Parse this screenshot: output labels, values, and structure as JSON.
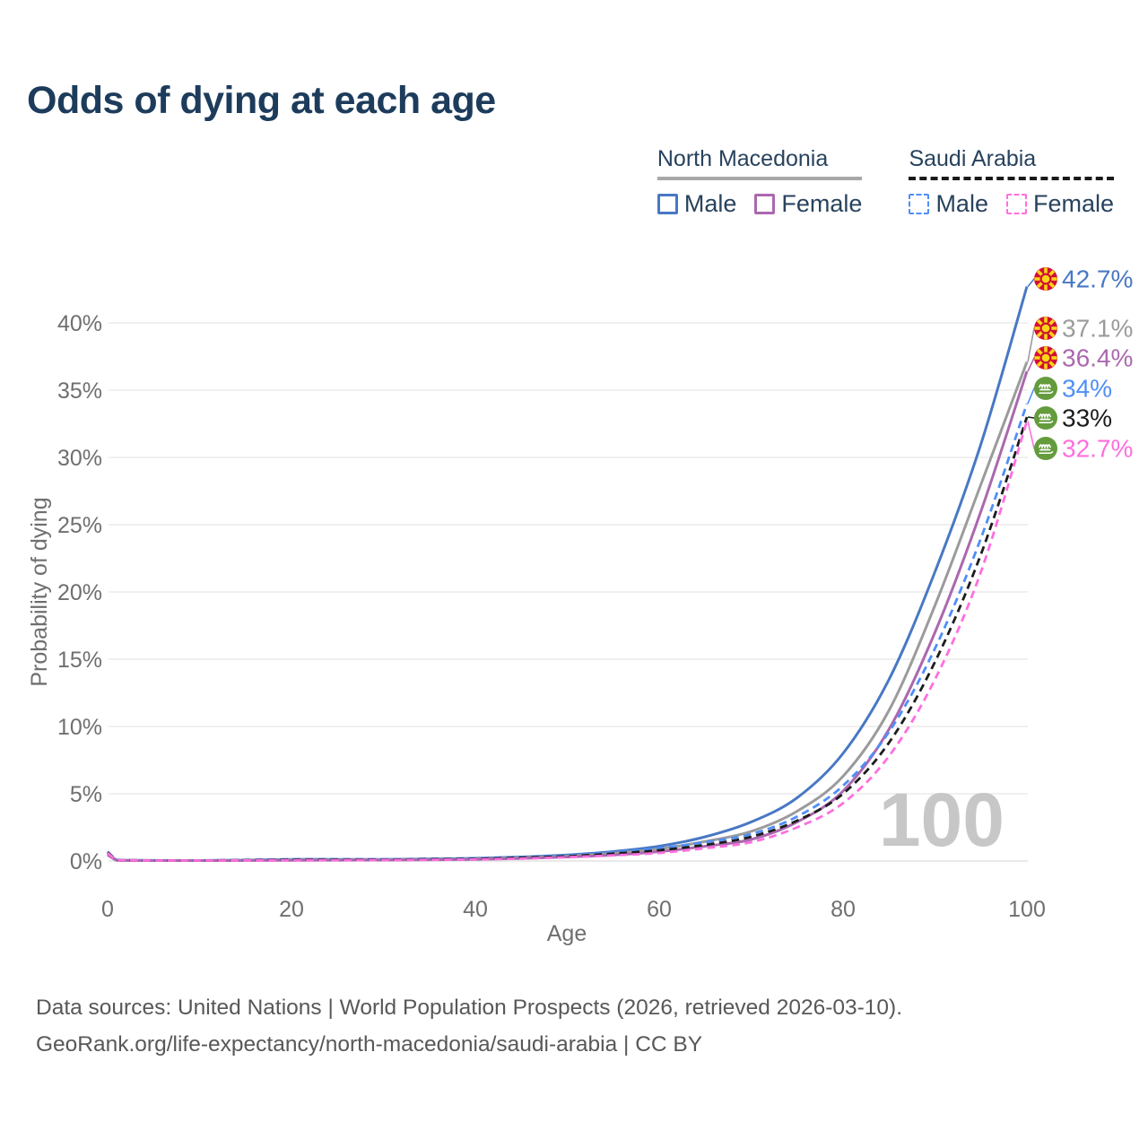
{
  "title": "Odds of dying at each age",
  "watermark": "100",
  "legend": {
    "groups": [
      {
        "label": "North Macedonia",
        "line_style": "solid",
        "underline_color": "#a8a8a8",
        "items": [
          {
            "label": "Male",
            "color": "#4878c4"
          },
          {
            "label": "Female",
            "color": "#ab68ae"
          }
        ]
      },
      {
        "label": "Saudi Arabia",
        "line_style": "dashed",
        "underline_color": "#1a1a1a",
        "items": [
          {
            "label": "Male",
            "color": "#4f8ef7"
          },
          {
            "label": "Female",
            "color": "#ff6ede"
          }
        ]
      }
    ]
  },
  "footer": {
    "line1": "Data sources: United Nations | World Population Prospects (2026, retrieved 2026-03-10).",
    "line2": "GeoRank.org/life-expectancy/north-macedonia/saudi-arabia | CC BY"
  },
  "chart_data": {
    "type": "line",
    "title": "Odds of dying at each age",
    "xlabel": "Age",
    "ylabel": "Probability of dying",
    "x_ticks": [
      "0",
      "20",
      "40",
      "60",
      "80",
      "100"
    ],
    "y_ticks": [
      "0%",
      "5%",
      "10%",
      "15%",
      "20%",
      "25%",
      "30%",
      "35%",
      "40%"
    ],
    "xlim": [
      0,
      100
    ],
    "ylim": [
      0,
      43
    ],
    "grid": true,
    "legend_position": "top-right",
    "x": [
      0,
      1,
      2,
      5,
      10,
      15,
      20,
      25,
      30,
      35,
      40,
      45,
      50,
      55,
      60,
      65,
      70,
      75,
      80,
      85,
      90,
      95,
      100
    ],
    "series": [
      {
        "name": "North Macedonia Male",
        "color": "#4878c4",
        "dash": "solid",
        "end_label": "42.7%",
        "end_label_color": "#4878c4",
        "flag": "north-macedonia",
        "values": [
          0.55,
          0.07,
          0.05,
          0.04,
          0.03,
          0.06,
          0.12,
          0.12,
          0.12,
          0.15,
          0.2,
          0.3,
          0.45,
          0.7,
          1.1,
          1.8,
          2.9,
          4.7,
          8.0,
          13.5,
          21.5,
          31.0,
          42.7
        ]
      },
      {
        "name": "North Macedonia Both sexes",
        "color": "#9b9b9b",
        "dash": "solid",
        "end_label": "37.1%",
        "end_label_color": "#9b9b9b",
        "flag": "north-macedonia",
        "values": [
          0.5,
          0.06,
          0.04,
          0.03,
          0.02,
          0.05,
          0.09,
          0.09,
          0.1,
          0.12,
          0.16,
          0.25,
          0.37,
          0.58,
          0.9,
          1.45,
          2.2,
          3.7,
          6.3,
          11.2,
          19.0,
          28.0,
          37.1
        ]
      },
      {
        "name": "North Macedonia Female",
        "color": "#ab68ae",
        "dash": "solid",
        "end_label": "36.4%",
        "end_label_color": "#ab68ae",
        "flag": "north-macedonia",
        "values": [
          0.45,
          0.05,
          0.04,
          0.03,
          0.02,
          0.04,
          0.05,
          0.06,
          0.07,
          0.09,
          0.12,
          0.19,
          0.3,
          0.45,
          0.7,
          1.1,
          1.6,
          2.9,
          5.2,
          9.8,
          17.0,
          26.0,
          36.4
        ]
      },
      {
        "name": "Saudi Arabia Male",
        "color": "#4f8ef7",
        "dash": "dashed",
        "end_label": "34%",
        "end_label_color": "#4f8ef7",
        "flag": "saudi-arabia",
        "values": [
          0.7,
          0.08,
          0.06,
          0.04,
          0.03,
          0.08,
          0.12,
          0.13,
          0.13,
          0.16,
          0.2,
          0.3,
          0.42,
          0.65,
          0.95,
          1.4,
          2.0,
          3.3,
          5.6,
          9.6,
          15.8,
          24.0,
          34.0
        ]
      },
      {
        "name": "Saudi Arabia Both sexes",
        "color": "#1c1c1c",
        "dash": "dashed",
        "end_label": "33%",
        "end_label_color": "#1c1c1c",
        "flag": "saudi-arabia",
        "values": [
          0.65,
          0.07,
          0.05,
          0.04,
          0.03,
          0.06,
          0.09,
          0.1,
          0.1,
          0.13,
          0.16,
          0.25,
          0.35,
          0.55,
          0.8,
          1.2,
          1.8,
          3.0,
          5.0,
          8.8,
          14.8,
          22.8,
          33.0
        ]
      },
      {
        "name": "Saudi Arabia Female",
        "color": "#ff6ede",
        "dash": "dashed",
        "end_label": "32.7%",
        "end_label_color": "#ff6ede",
        "flag": "saudi-arabia",
        "values": [
          0.6,
          0.06,
          0.05,
          0.03,
          0.02,
          0.04,
          0.05,
          0.06,
          0.07,
          0.09,
          0.12,
          0.18,
          0.28,
          0.42,
          0.6,
          0.95,
          1.4,
          2.5,
          4.3,
          7.8,
          13.5,
          21.5,
          32.7
        ]
      }
    ]
  }
}
